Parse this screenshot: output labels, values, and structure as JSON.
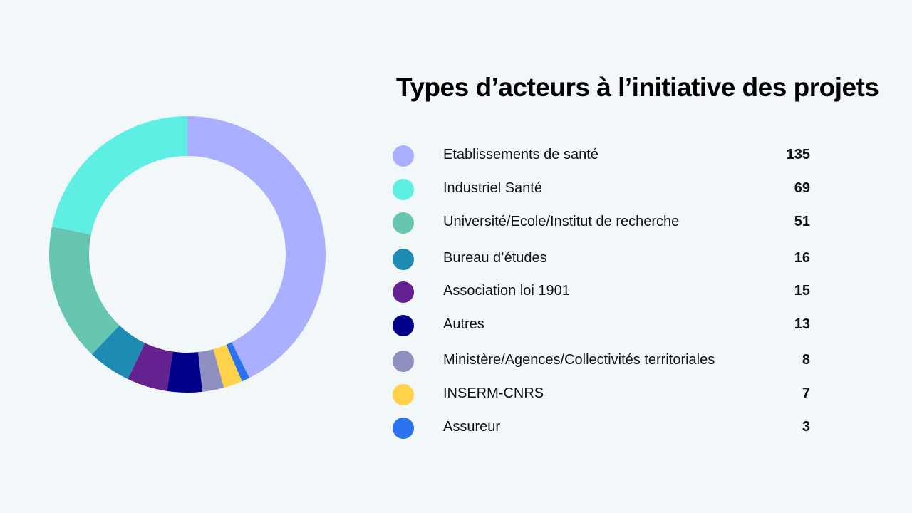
{
  "chart_data": {
    "type": "pie",
    "style": "donut",
    "title": "Types d’acteurs à l’initiative des projets",
    "slices": [
      {
        "label": "Etablissements de santé",
        "value": 135,
        "color": "#aab0ff"
      },
      {
        "label": "Industriel Santé",
        "value": 69,
        "color": "#5eeee4"
      },
      {
        "label": "Université/Ecole/Institut de recherche",
        "value": 51,
        "color": "#66c6b0"
      },
      {
        "label": "Bureau d’études",
        "value": 16,
        "color": "#1e8bb5"
      },
      {
        "label": "Association loi 1901",
        "value": 15,
        "color": "#63228f"
      },
      {
        "label": "Autres",
        "value": 13,
        "color": "#00008b"
      },
      {
        "label": "Ministère/Agences/Collectivités territoriales",
        "value": 8,
        "color": "#9090c0"
      },
      {
        "label": "INSERM-CNRS",
        "value": 7,
        "color": "#ffd24a"
      },
      {
        "label": "Assureur",
        "value": 3,
        "color": "#2a72f0"
      }
    ],
    "slice_order_clockwise_from_top": [
      "Etablissements de santé",
      "Assureur",
      "INSERM-CNRS",
      "Ministère/Agences/Collectivités territoriales",
      "Autres",
      "Association loi 1901",
      "Bureau d’études",
      "Université/Ecole/Institut de recherche",
      "Industriel Santé"
    ],
    "legend_placement": "right"
  }
}
